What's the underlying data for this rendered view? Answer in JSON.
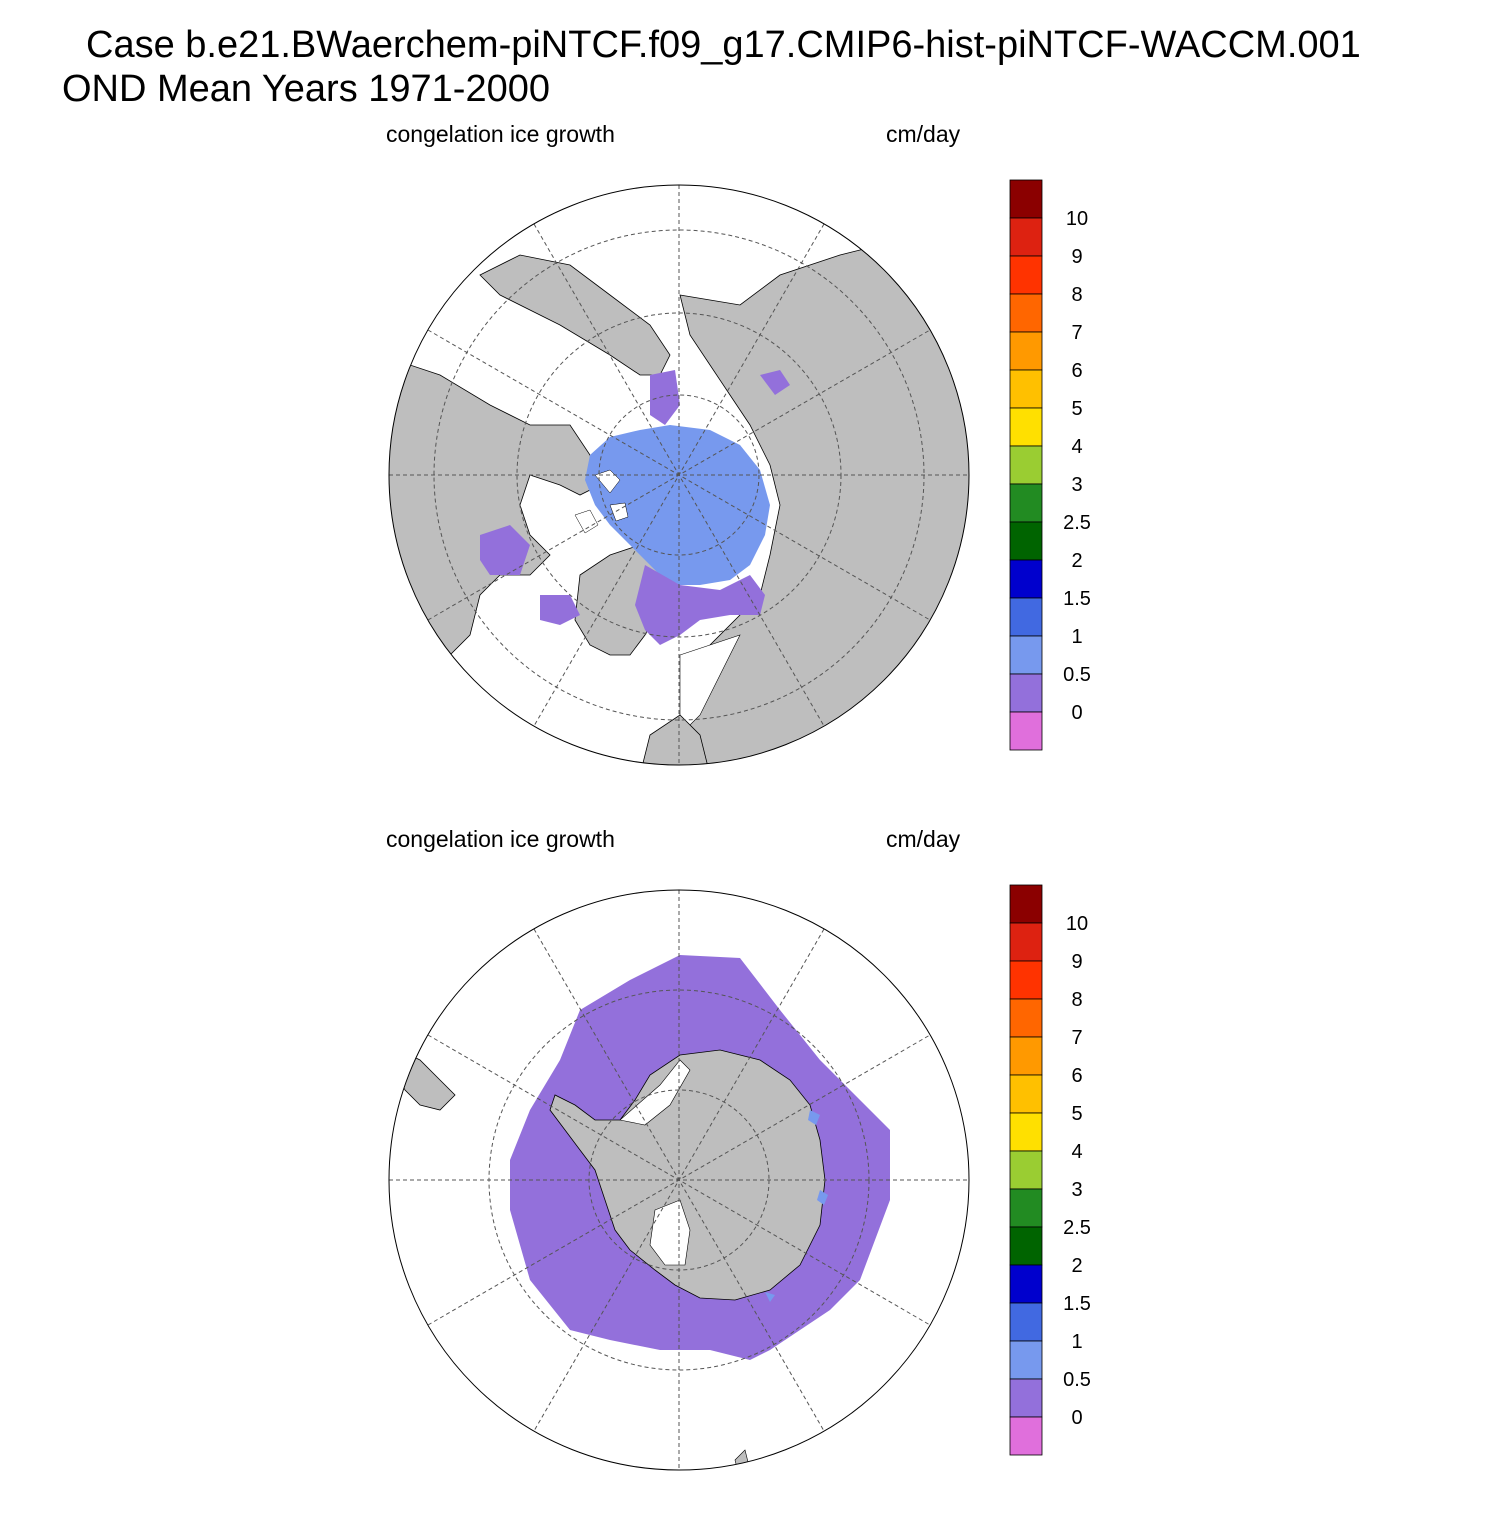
{
  "title_line1": "Case b.e21.BWaerchem-piNTCF.f09_g17.CMIP6-hist-piNTCF-WACCM.001",
  "title_line2": "OND Mean   Years 1971-2000",
  "panels": [
    {
      "id": "north",
      "hemisphere": "Northern Hemisphere polar stereographic",
      "left_label": "congelation ice growth",
      "right_label": "cm/day"
    },
    {
      "id": "south",
      "hemisphere": "Southern Hemisphere polar stereographic",
      "left_label": "congelation ice growth",
      "right_label": "cm/day"
    }
  ],
  "colorbar": {
    "labels": [
      "0",
      "0.5",
      "1",
      "1.5",
      "2",
      "2.5",
      "3",
      "4",
      "5",
      "6",
      "7",
      "8",
      "9",
      "10"
    ],
    "colors": [
      "#e06fdc",
      "#9370db",
      "#7799ee",
      "#4169e1",
      "#0000cd",
      "#006400",
      "#228b22",
      "#9acd32",
      "#ffe000",
      "#ffc000",
      "#ff9900",
      "#ff6600",
      "#ff3300",
      "#dd2211",
      "#8b0000"
    ]
  },
  "colors": {
    "land": "#bebebe",
    "ocean": "#ffffff",
    "grid": "#555555"
  }
}
